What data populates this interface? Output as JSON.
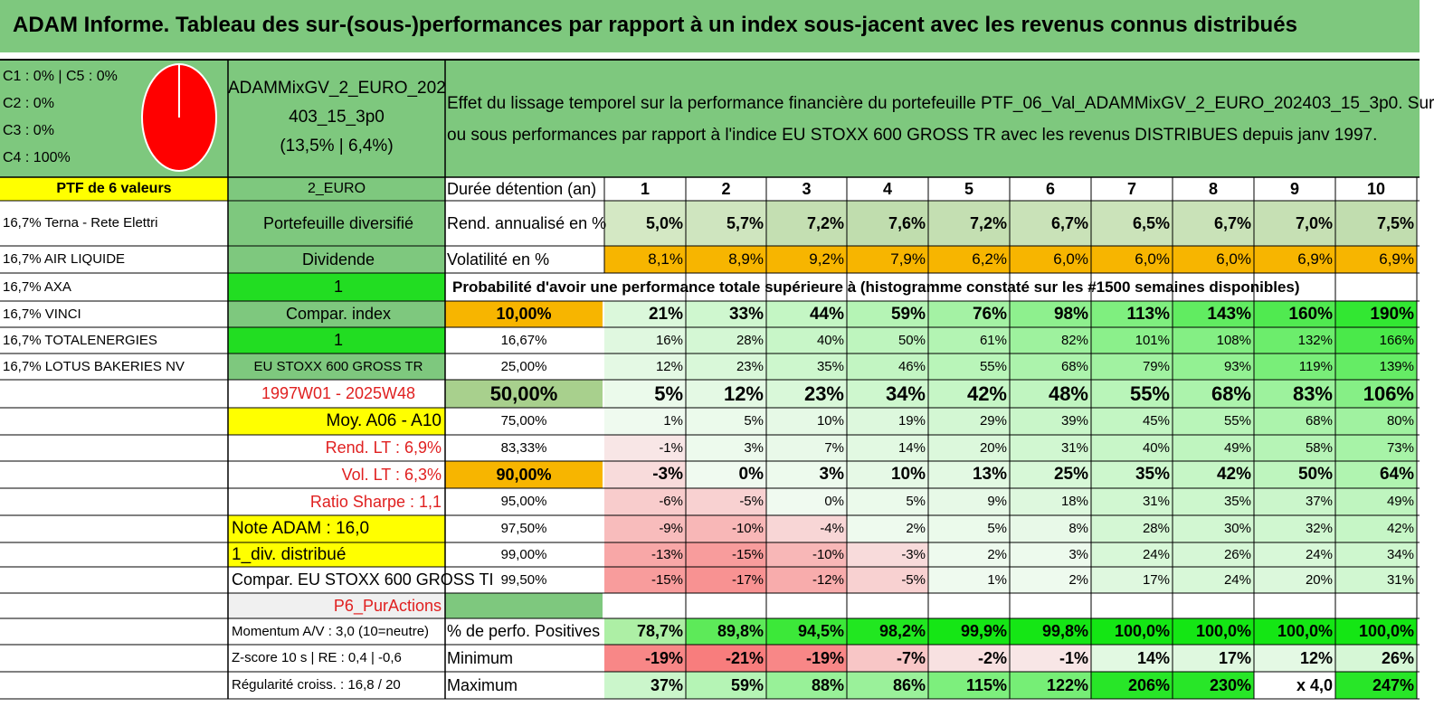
{
  "title": "ADAM Informe. Tableau des sur-(sous-)performances par rapport à un index sous-jacent avec les revenus connus distribués",
  "pie_labels": [
    "C1 : 0% | C5 : 0%",
    "C2 : 0%",
    "C3 : 0%",
    "C4 : 100%"
  ],
  "portfolio_name": [
    "ADAMMixGV_2_EURO_202",
    "403_15_3p0",
    "(13,5% | 6,4%)"
  ],
  "description": [
    "Effet du lissage temporel sur la performance financière du portefeuille PTF_06_Val_ADAMMixGV_2_EURO_202403_15_3p0. Sur",
    "ou sous performances par rapport à l'indice EU STOXX 600 GROSS TR avec les revenus DISTRIBUES depuis janv 1997."
  ],
  "ptf_label": "PTF de 6 valeurs",
  "currency": "2_EURO",
  "holdings": [
    "16,7% Terna - Rete Elettri",
    "16,7% AIR LIQUIDE",
    "16,7% AXA",
    "16,7% VINCI",
    "16,7% TOTALENERGIES",
    "16,7% LOTUS BAKERIES NV"
  ],
  "info_col": [
    "Portefeuille diversifié",
    "Dividende",
    "1",
    "Compar. index",
    "1",
    "EU STOXX 600 GROSS TR",
    "1997W01 - 2025W48",
    "Moy. A06 - A10",
    "Rend. LT : 6,9%",
    "Vol. LT : 6,3%",
    "Ratio Sharpe : 1,1",
    "Note ADAM : 16,0",
    "1_div. distribué",
    "Compar. EU STOXX 600 GROSS TI",
    "P6_PurActions",
    "Momentum A/V : 3,0 (10=neutre)",
    "Z-score 10 s | RE : 0,4 | -0,6",
    "Régularité croiss. : 16,8 / 20"
  ],
  "years_label": "Durée détention (an)",
  "years": [
    "1",
    "2",
    "3",
    "4",
    "5",
    "6",
    "7",
    "8",
    "9",
    "10"
  ],
  "rend_label": "Rend. annualisé en %",
  "rend": [
    "5,0%",
    "5,7%",
    "7,2%",
    "7,6%",
    "7,2%",
    "6,7%",
    "6,5%",
    "6,7%",
    "7,0%",
    "7,5%"
  ],
  "vol_label": "Volatilité en %",
  "vol": [
    "8,1%",
    "8,9%",
    "9,2%",
    "7,9%",
    "6,2%",
    "6,0%",
    "6,0%",
    "6,0%",
    "6,9%",
    "6,9%"
  ],
  "prob_header": "Probabilité d'avoir une performance totale supérieure à (histogramme constaté sur les #1500 semaines disponibles)",
  "quantiles": [
    {
      "label": "10,00%",
      "values": [
        "21%",
        "33%",
        "44%",
        "59%",
        "76%",
        "98%",
        "113%",
        "143%",
        "160%",
        "190%"
      ]
    },
    {
      "label": "16,67%",
      "values": [
        "16%",
        "28%",
        "40%",
        "50%",
        "61%",
        "82%",
        "101%",
        "108%",
        "132%",
        "166%"
      ]
    },
    {
      "label": "25,00%",
      "values": [
        "12%",
        "23%",
        "35%",
        "46%",
        "55%",
        "68%",
        "79%",
        "93%",
        "119%",
        "139%"
      ]
    },
    {
      "label": "50,00%",
      "values": [
        "5%",
        "12%",
        "23%",
        "34%",
        "42%",
        "48%",
        "55%",
        "68%",
        "83%",
        "106%"
      ]
    },
    {
      "label": "75,00%",
      "values": [
        "1%",
        "5%",
        "10%",
        "19%",
        "29%",
        "39%",
        "45%",
        "55%",
        "68%",
        "80%"
      ]
    },
    {
      "label": "83,33%",
      "values": [
        "-1%",
        "3%",
        "7%",
        "14%",
        "20%",
        "31%",
        "40%",
        "49%",
        "58%",
        "73%"
      ]
    },
    {
      "label": "90,00%",
      "values": [
        "-3%",
        "0%",
        "3%",
        "10%",
        "13%",
        "25%",
        "35%",
        "42%",
        "50%",
        "64%"
      ]
    },
    {
      "label": "95,00%",
      "values": [
        "-6%",
        "-5%",
        "0%",
        "5%",
        "9%",
        "18%",
        "31%",
        "35%",
        "37%",
        "49%"
      ]
    },
    {
      "label": "97,50%",
      "values": [
        "-9%",
        "-10%",
        "-4%",
        "2%",
        "5%",
        "8%",
        "28%",
        "30%",
        "32%",
        "42%"
      ]
    },
    {
      "label": "99,00%",
      "values": [
        "-13%",
        "-15%",
        "-10%",
        "-3%",
        "2%",
        "3%",
        "24%",
        "26%",
        "24%",
        "34%"
      ]
    },
    {
      "label": "99,50%",
      "values": [
        "-15%",
        "-17%",
        "-12%",
        "-5%",
        "1%",
        "2%",
        "17%",
        "24%",
        "20%",
        "31%"
      ]
    }
  ],
  "stats": [
    {
      "label": "% de perfo. Positives",
      "values": [
        "78,7%",
        "89,8%",
        "94,5%",
        "98,2%",
        "99,9%",
        "99,8%",
        "100,0%",
        "100,0%",
        "100,0%",
        "100,0%"
      ]
    },
    {
      "label": "Minimum",
      "values": [
        "-19%",
        "-21%",
        "-19%",
        "-7%",
        "-2%",
        "-1%",
        "14%",
        "17%",
        "12%",
        "26%"
      ]
    },
    {
      "label": "Maximum",
      "values": [
        "37%",
        "59%",
        "88%",
        "86%",
        "115%",
        "122%",
        "206%",
        "230%",
        "x 4,0",
        "247%"
      ]
    }
  ],
  "colors": {
    "header_green": "#7ec87e",
    "yellow": "#ffff00",
    "orange": "#f7b500",
    "bright_green": "#22dd22",
    "pie_red": "#ff0000"
  }
}
